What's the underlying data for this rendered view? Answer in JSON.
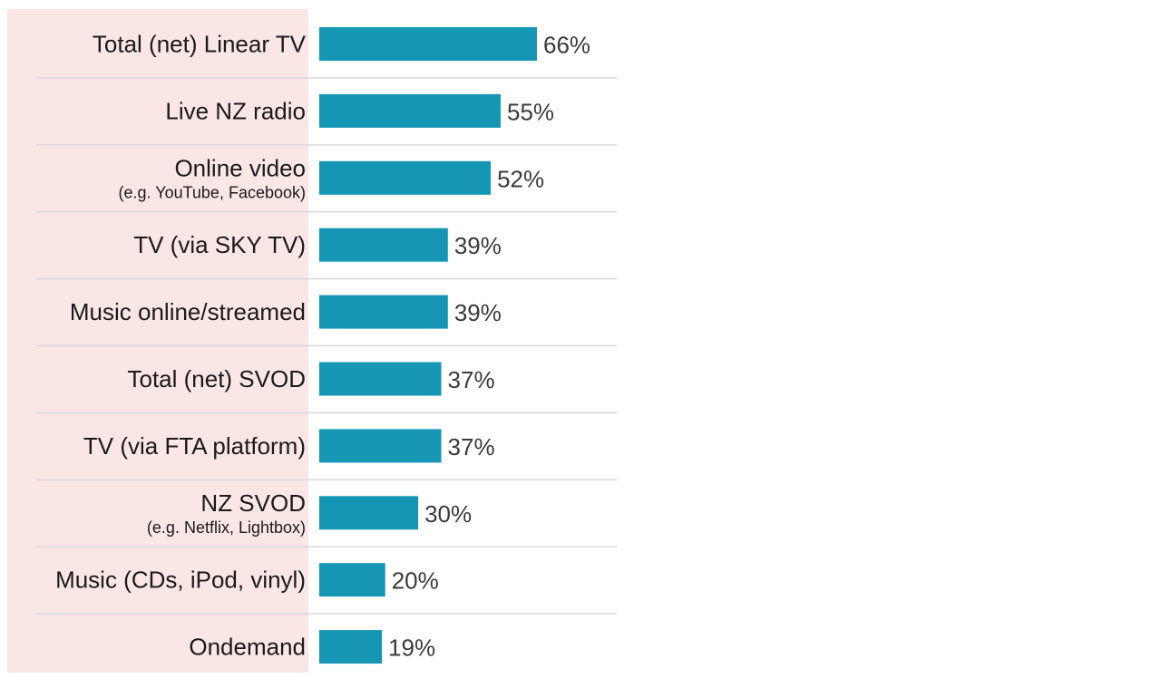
{
  "chart_data": {
    "type": "bar",
    "orientation": "horizontal",
    "categories": [
      {
        "label": "Total (net) Linear TV",
        "sublabel": ""
      },
      {
        "label": "Live NZ radio",
        "sublabel": ""
      },
      {
        "label": "Online video",
        "sublabel": "(e.g. YouTube, Facebook)"
      },
      {
        "label": "TV (via SKY TV)",
        "sublabel": ""
      },
      {
        "label": "Music online/streamed",
        "sublabel": ""
      },
      {
        "label": "Total (net) SVOD",
        "sublabel": ""
      },
      {
        "label": "TV (via FTA platform)",
        "sublabel": ""
      },
      {
        "label": "NZ SVOD",
        "sublabel": "(e.g. Netflix, Lightbox)"
      },
      {
        "label": "Music (CDs, iPod, vinyl)",
        "sublabel": ""
      },
      {
        "label": "Ondemand",
        "sublabel": ""
      }
    ],
    "values": [
      66,
      55,
      52,
      39,
      39,
      37,
      37,
      30,
      20,
      19
    ],
    "value_labels": [
      "66%",
      "55%",
      "52%",
      "39%",
      "39%",
      "37%",
      "37%",
      "30%",
      "20%",
      "19%"
    ],
    "xlim": [
      0,
      100
    ],
    "grid": false,
    "legend": "none"
  },
  "colors": {
    "bar": "#1596b5",
    "label_panel": "#f9e6e5",
    "separator": "#d9d9d9"
  }
}
